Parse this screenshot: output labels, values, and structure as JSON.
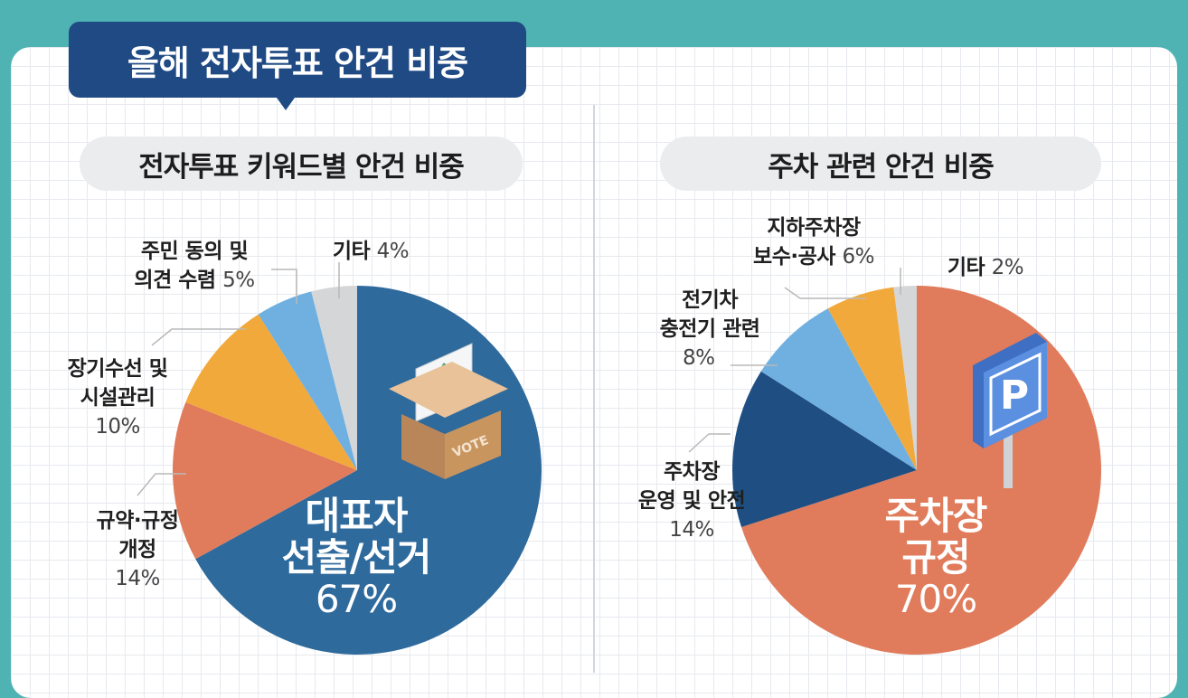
{
  "header": {
    "title": "올해 전자투표 안건 비중"
  },
  "colors": {
    "dark_blue": "#2e6a9c",
    "coral": "#e07b5b",
    "orange": "#f2a93b",
    "light_blue": "#6fb0e0",
    "gray": "#d4d6d8",
    "teal_bg": "#4fb3b3"
  },
  "chart_data": [
    {
      "type": "pie",
      "title": "전자투표 키워드별 안건 비중",
      "categories": [
        "대표자 선출/선거",
        "규약·규정 개정",
        "장기수선 및 시설관리",
        "주민 동의 및 의견 수렴",
        "기타"
      ],
      "values": [
        67,
        14,
        10,
        5,
        4
      ],
      "label_lines": [
        [
          "대표자",
          "선출/선거"
        ],
        [
          "규약·규정",
          "개정"
        ],
        [
          "장기수선 및",
          "시설관리"
        ],
        [
          "주민 동의 및",
          "의견 수렴"
        ],
        [
          "기타"
        ]
      ],
      "pct_labels": [
        "67%",
        "14%",
        "10%",
        "5%",
        "4%"
      ],
      "colors": [
        "#2e6a9c",
        "#e07b5b",
        "#f2a93b",
        "#6fb0e0",
        "#d4d6d8"
      ],
      "icon": "ballot-box-icon",
      "icon_text": "VOTE"
    },
    {
      "type": "pie",
      "title": "주차 관련 안건 비중",
      "categories": [
        "주차장 규정",
        "주차장 운영 및 안전",
        "전기차 충전기 관련",
        "지하주차장 보수·공사",
        "기타"
      ],
      "values": [
        70,
        14,
        8,
        6,
        2
      ],
      "label_lines": [
        [
          "주차장",
          "규정"
        ],
        [
          "주차장",
          "운영 및 안전"
        ],
        [
          "전기차",
          "충전기 관련"
        ],
        [
          "지하주차장",
          "보수·공사"
        ],
        [
          "기타"
        ]
      ],
      "pct_labels": [
        "70%",
        "14%",
        "8%",
        "6%",
        "2%"
      ],
      "colors": [
        "#e07b5b",
        "#1f4f82",
        "#6fb0e0",
        "#f2a93b",
        "#d4d6d8"
      ],
      "icon": "parking-sign-icon",
      "icon_text": "P"
    }
  ]
}
